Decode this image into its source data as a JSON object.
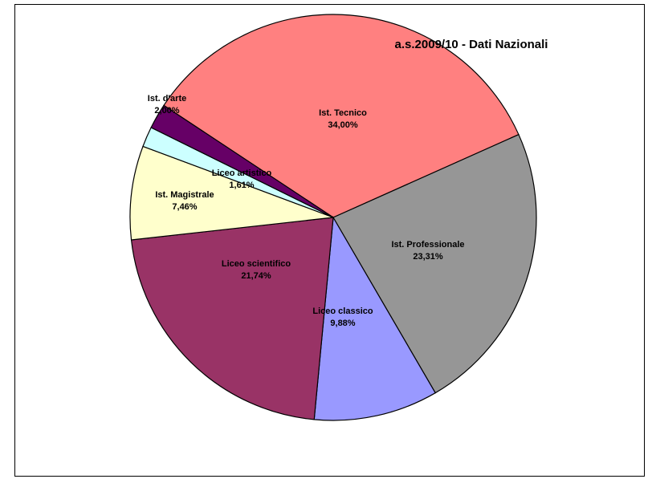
{
  "chart_data": {
    "type": "pie",
    "title": "a.s.2009/10 - Dati Nazionali",
    "legend": "none",
    "slices": [
      {
        "name": "Ist. Tecnico",
        "value": 34.0,
        "value_label": "34,00%",
        "color": "#ff8080"
      },
      {
        "name": "Ist. Professionale",
        "value": 23.31,
        "value_label": "23,31%",
        "color": "#969696"
      },
      {
        "name": "Liceo classico",
        "value": 9.88,
        "value_label": "9,88%",
        "color": "#9999ff"
      },
      {
        "name": "Liceo scientifico",
        "value": 21.74,
        "value_label": "21,74%",
        "color": "#993366"
      },
      {
        "name": "Ist. Magistrale",
        "value": 7.46,
        "value_label": "7,46%",
        "color": "#ffffcc"
      },
      {
        "name": "Liceo artistico",
        "value": 1.61,
        "value_label": "1,61%",
        "color": "#ccffff"
      },
      {
        "name": "Ist. d'arte",
        "value": 2.0,
        "value_label": "2,00%",
        "color": "#660066"
      }
    ]
  }
}
